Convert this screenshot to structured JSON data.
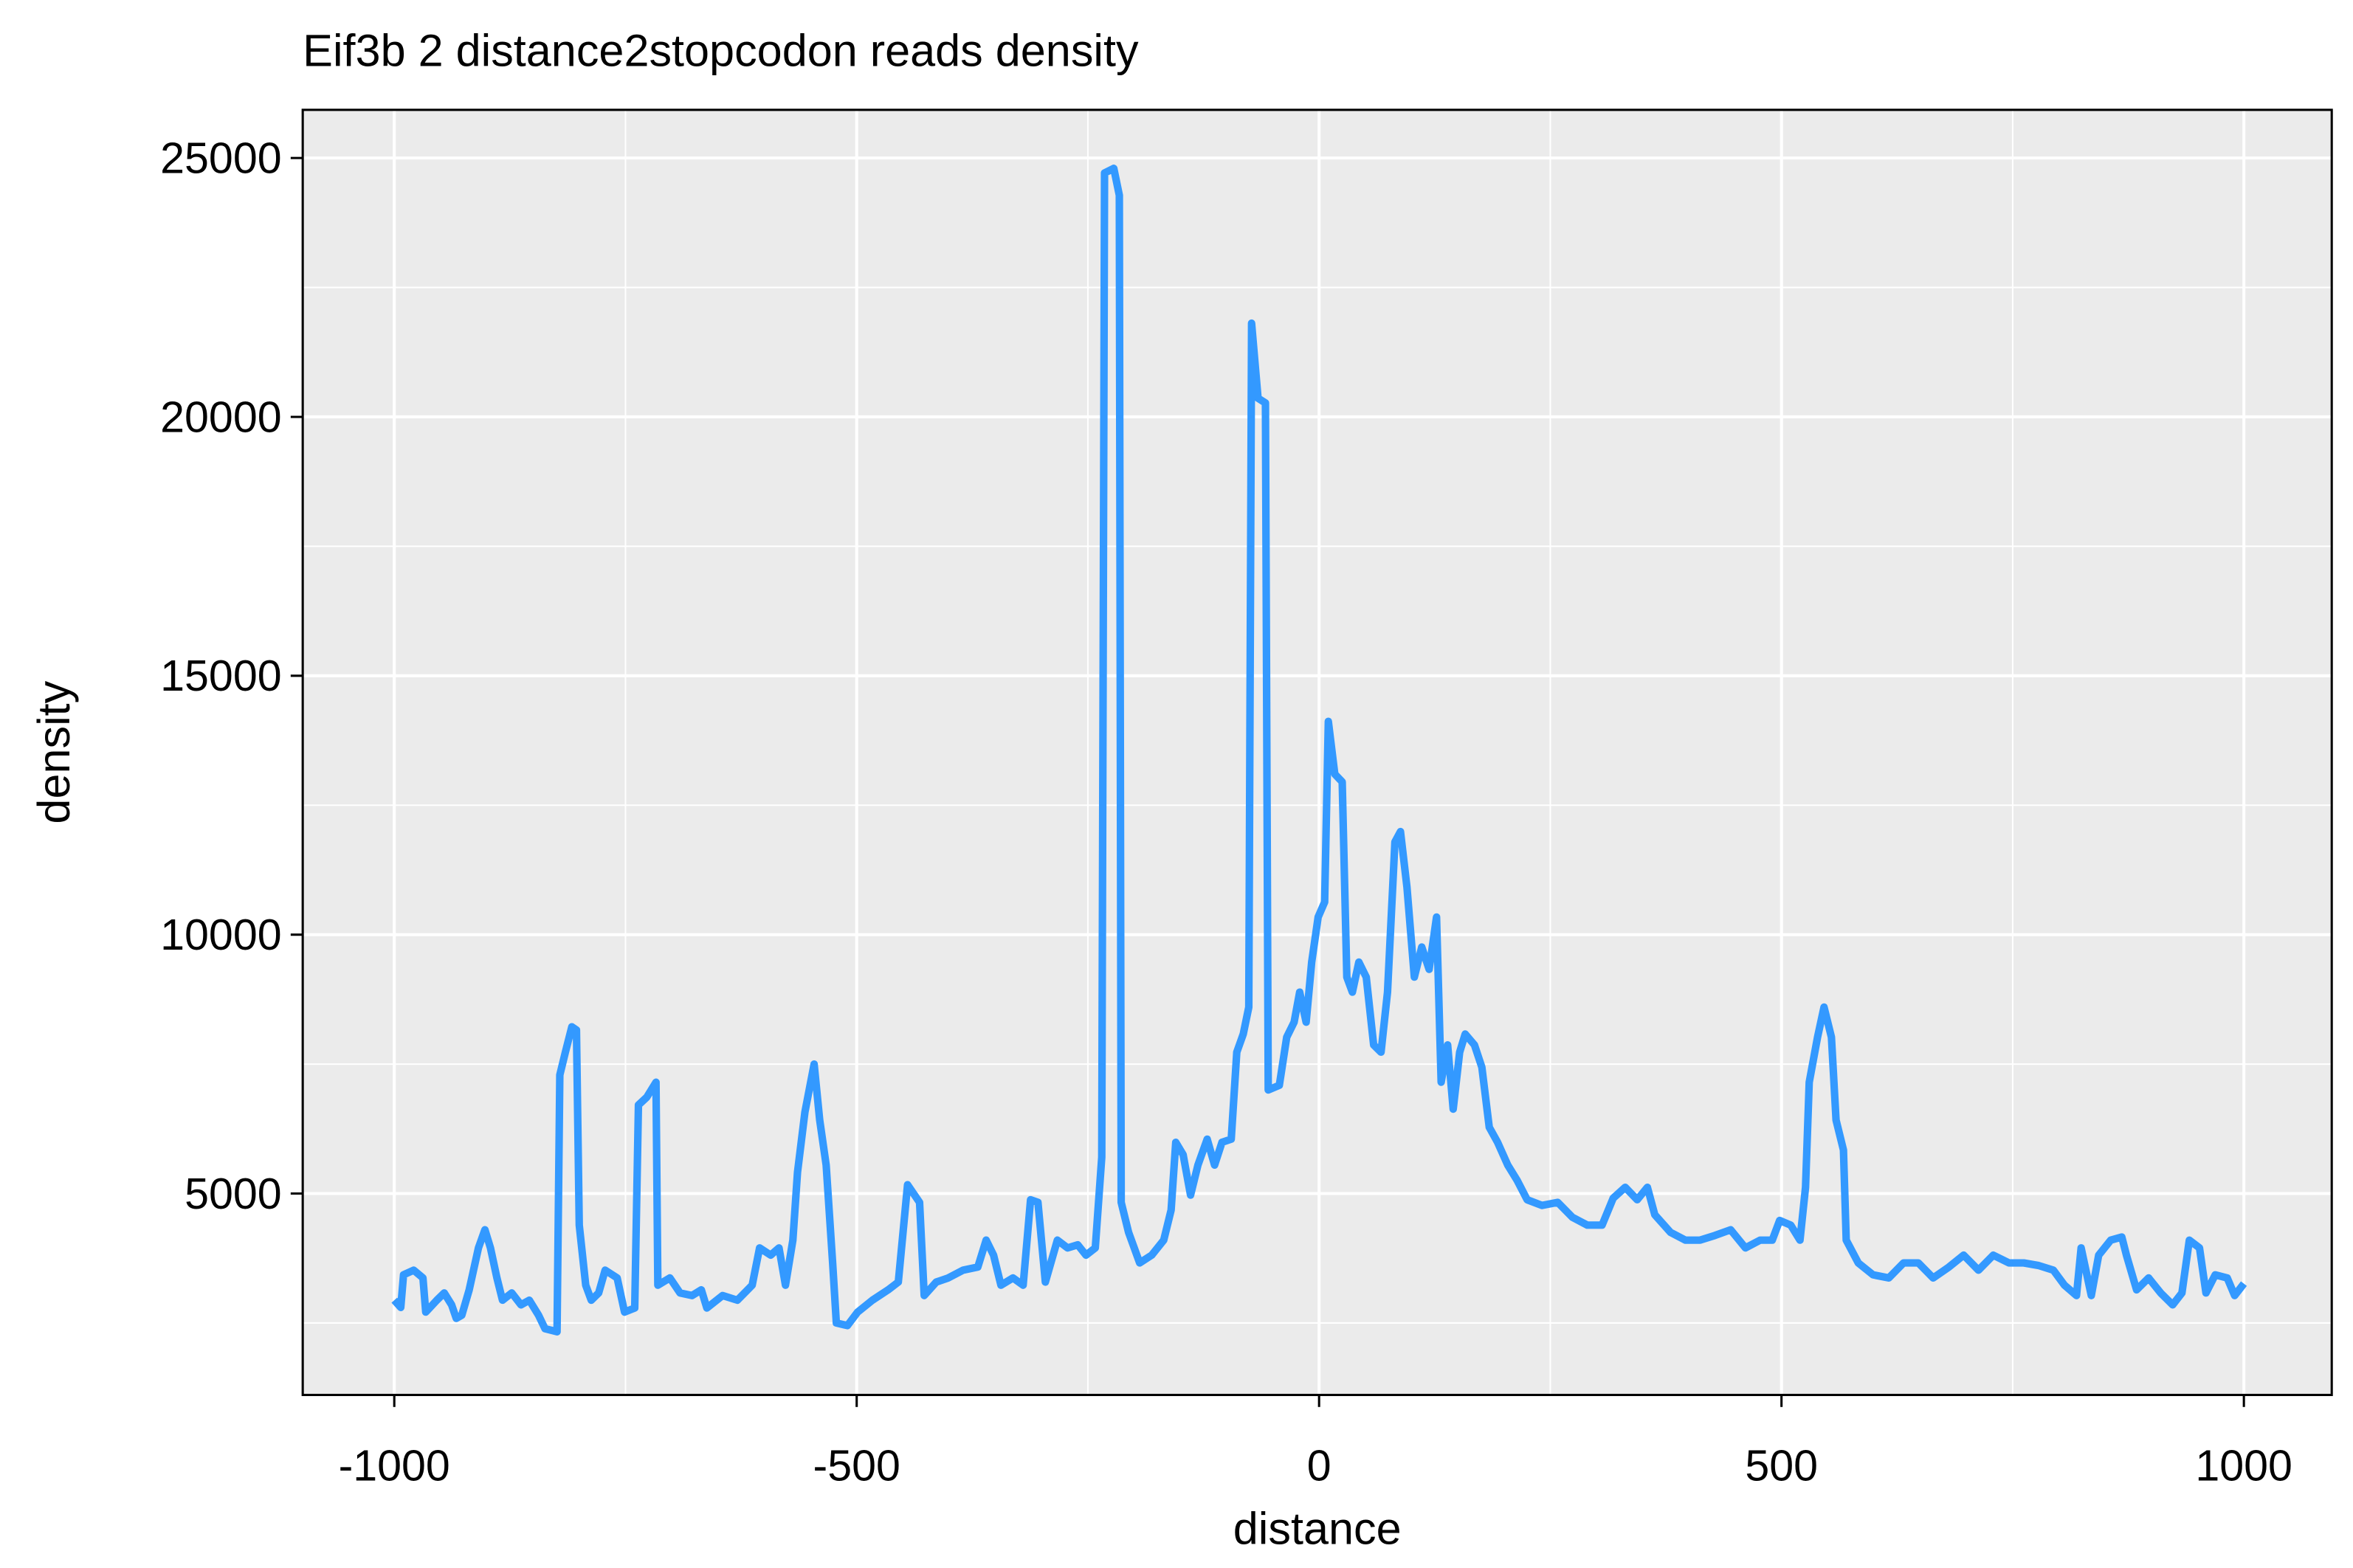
{
  "chart_data": {
    "type": "line",
    "title": "Eif3b 2 distance2stopcodon reads density",
    "xlabel": "distance",
    "ylabel": "density",
    "xlim": [
      -1099,
      1095
    ],
    "ylim": [
      1110,
      25930
    ],
    "xticks": [
      -1000,
      -500,
      0,
      500,
      1000
    ],
    "yticks": [
      5000,
      10000,
      15000,
      20000,
      25000
    ],
    "grid": true,
    "x": [
      -1000,
      -993,
      -990,
      -979,
      -969,
      -966,
      -954,
      -946,
      -938,
      -933,
      -927,
      -919,
      -909,
      -902,
      -896,
      -889,
      -883,
      -873,
      -863,
      -854,
      -844,
      -837,
      -824,
      -821,
      -815,
      -808,
      -803,
      -800,
      -793,
      -787,
      -779,
      -772,
      -759,
      -751,
      -740,
      -736,
      -727,
      -717,
      -715,
      -702,
      -691,
      -678,
      -668,
      -662,
      -645,
      -629,
      -613,
      -605,
      -593,
      -584,
      -577,
      -569,
      -564,
      -556,
      -546,
      -540,
      -533,
      -526,
      -522,
      -510,
      -499,
      -483,
      -466,
      -455,
      -445,
      -432,
      -427,
      -414,
      -401,
      -385,
      -369,
      -360,
      -352,
      -344,
      -331,
      -320,
      -312,
      -304,
      -296,
      -283,
      -272,
      -261,
      -252,
      -242,
      -235,
      -232,
      -222,
      -216,
      -214,
      -206,
      -194,
      -181,
      -168,
      -160,
      -155,
      -147,
      -139,
      -131,
      -121,
      -113,
      -105,
      -95,
      -89,
      -82,
      -76,
      -73,
      -66,
      -58,
      -55,
      -43,
      -35,
      -27,
      -21,
      -14,
      -8,
      -1,
      6,
      10,
      17,
      25,
      30,
      36,
      43,
      51,
      59,
      67,
      74,
      82,
      88,
      95,
      103,
      111,
      119,
      127,
      132,
      139,
      145,
      152,
      158,
      168,
      176,
      184,
      193,
      204,
      214,
      225,
      241,
      258,
      274,
      290,
      306,
      318,
      331,
      344,
      355,
      363,
      380,
      396,
      412,
      428,
      445,
      461,
      477,
      490,
      498,
      510,
      520,
      526,
      530,
      539,
      546,
      554,
      559,
      567,
      570,
      583,
      599,
      616,
      632,
      648,
      664,
      681,
      697,
      713,
      729,
      746,
      762,
      778,
      794,
      806,
      819,
      824,
      835,
      843,
      856,
      868,
      873,
      884,
      897,
      910,
      923,
      933,
      941,
      952,
      959,
      969,
      982,
      990,
      1000
    ],
    "series": [
      {
        "name": "density",
        "color": "#3399ff",
        "values": [
          2940,
          2800,
          3430,
          3520,
          3370,
          2710,
          2940,
          3080,
          2850,
          2590,
          2650,
          3140,
          3950,
          4300,
          3950,
          3370,
          2940,
          3080,
          2850,
          2940,
          2650,
          2390,
          2330,
          7290,
          7730,
          8220,
          8160,
          4390,
          3230,
          2940,
          3080,
          3520,
          3370,
          2710,
          2790,
          6710,
          6860,
          7150,
          3230,
          3370,
          3080,
          3030,
          3140,
          2790,
          3030,
          2940,
          3230,
          3950,
          3810,
          3950,
          3230,
          4100,
          5410,
          6570,
          7500,
          6420,
          5550,
          3660,
          2500,
          2450,
          2710,
          2940,
          3140,
          3290,
          5170,
          4830,
          3030,
          3290,
          3370,
          3520,
          3580,
          4100,
          3810,
          3230,
          3370,
          3230,
          4880,
          4830,
          3290,
          4100,
          3950,
          4010,
          3810,
          3950,
          5700,
          24710,
          24800,
          24280,
          4830,
          4250,
          3660,
          3810,
          4100,
          4680,
          5990,
          5750,
          4970,
          5550,
          6050,
          5550,
          5990,
          6050,
          7730,
          8080,
          8600,
          21810,
          20360,
          20270,
          7000,
          7090,
          8020,
          8310,
          8890,
          8310,
          9470,
          10340,
          10630,
          14120,
          13100,
          12950,
          9180,
          8890,
          9470,
          9180,
          7870,
          7730,
          8890,
          11790,
          11990,
          10920,
          9180,
          9760,
          9330,
          10340,
          7150,
          7870,
          6630,
          7730,
          8080,
          7870,
          7440,
          6280,
          5990,
          5550,
          5260,
          4880,
          4770,
          4830,
          4540,
          4390,
          4390,
          4910,
          5120,
          4880,
          5120,
          4590,
          4250,
          4100,
          4100,
          4190,
          4300,
          3950,
          4100,
          4100,
          4480,
          4390,
          4100,
          5120,
          7150,
          8020,
          8600,
          8020,
          6420,
          5840,
          4100,
          3660,
          3430,
          3370,
          3660,
          3660,
          3370,
          3580,
          3810,
          3520,
          3810,
          3660,
          3660,
          3610,
          3520,
          3230,
          3030,
          3950,
          3030,
          3810,
          4100,
          4160,
          3810,
          3140,
          3370,
          3080,
          2850,
          3080,
          4100,
          3950,
          3080,
          3430,
          3370,
          3030,
          3260
        ]
      }
    ]
  }
}
